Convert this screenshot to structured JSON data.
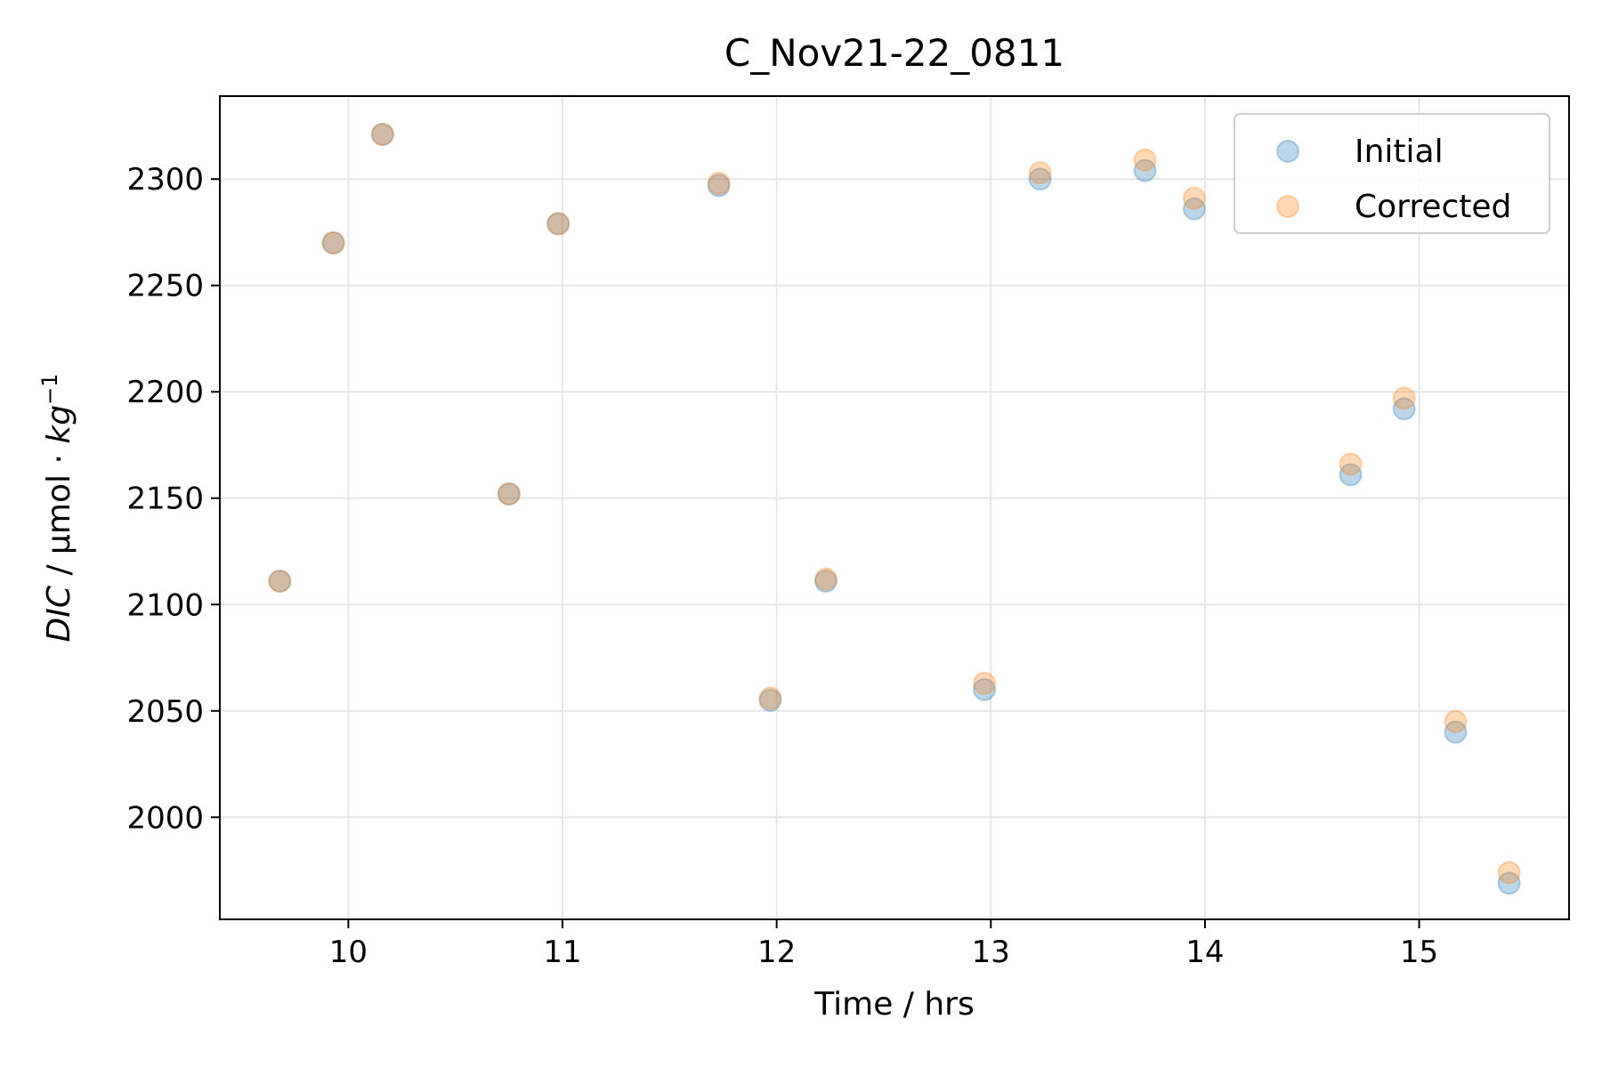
{
  "chart_data": {
    "type": "scatter",
    "title": "C_Nov21-22_0811",
    "xlabel": "Time / hrs",
    "ylabel": {
      "italic_part": "DIC",
      "upright_part": " / µmol · ",
      "unit_italic": "kg",
      "superscript": "−1"
    },
    "xlim": [
      9.4,
      15.7
    ],
    "ylim": [
      1952,
      2339
    ],
    "xticks": [
      10,
      11,
      12,
      13,
      14,
      15
    ],
    "yticks": [
      2000,
      2050,
      2100,
      2150,
      2200,
      2250,
      2300
    ],
    "grid": true,
    "legend_position": "top-right",
    "series": [
      {
        "name": "Initial",
        "color": "#1f77b4",
        "x": [
          9.68,
          9.93,
          10.16,
          10.75,
          10.98,
          11.73,
          11.97,
          12.23,
          12.97,
          13.23,
          13.72,
          13.95,
          14.68,
          14.93,
          15.17,
          15.42
        ],
        "y": [
          2111,
          2270,
          2321,
          2152,
          2279,
          2297,
          2055,
          2111,
          2060,
          2300,
          2304,
          2286,
          2161,
          2192,
          2040,
          1969
        ]
      },
      {
        "name": "Corrected",
        "color": "#ff7f0e",
        "x": [
          9.68,
          9.93,
          10.16,
          10.75,
          10.98,
          11.73,
          11.97,
          12.23,
          12.97,
          13.23,
          13.72,
          13.95,
          14.68,
          14.93,
          15.17,
          15.42
        ],
        "y": [
          2111,
          2270,
          2321,
          2152,
          2279,
          2298,
          2056,
          2112,
          2063,
          2303,
          2309,
          2291,
          2166,
          2197,
          2045,
          1974
        ]
      }
    ]
  }
}
